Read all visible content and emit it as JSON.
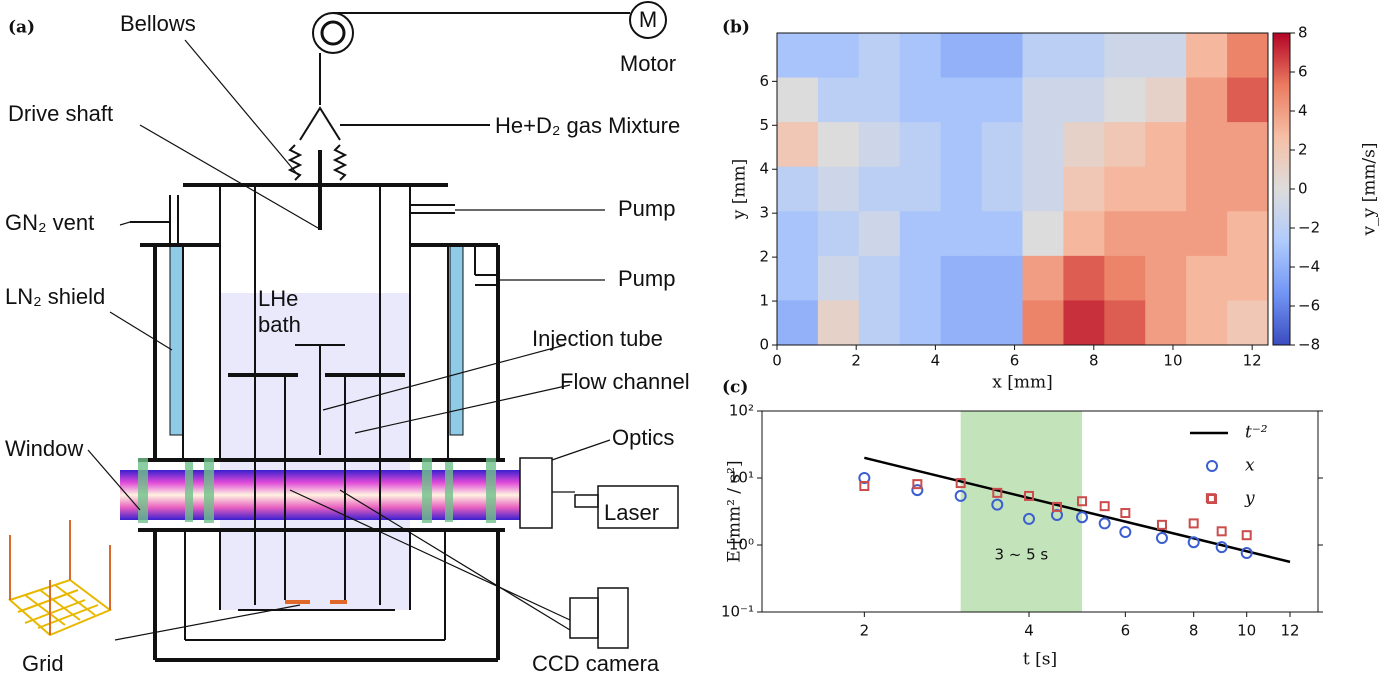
{
  "panel_labels": [
    "(a)",
    "(b)",
    "(c)"
  ],
  "diagram": {
    "labels": [
      "Bellows",
      "M",
      "Motor",
      "Drive shaft",
      "He+D₂ gas Mixture",
      "Pump",
      "Pump",
      "GN₂ vent",
      "LN₂ shield",
      "LHe",
      "bath",
      "Injection tube",
      "Flow channel",
      "Optics",
      "Window",
      "Laser",
      "Grid",
      "CCD camera"
    ]
  },
  "chart_data": [
    {
      "type": "heatmap",
      "xlabel": "x [mm]",
      "ylabel": "y [mm]",
      "colorbar_label": "v_y [mm/s]",
      "xlim": [
        0,
        12.4
      ],
      "ylim": [
        0,
        7.1
      ],
      "xticks": [
        0,
        2,
        4,
        6,
        8,
        10,
        12
      ],
      "yticks": [
        0,
        1,
        2,
        3,
        4,
        5,
        6
      ],
      "clim": [
        -8,
        8
      ],
      "cticks": [
        {
          "value": -8,
          "label": "−8"
        },
        {
          "value": -6,
          "label": "−6"
        },
        {
          "value": -4,
          "label": "−4"
        },
        {
          "value": -2,
          "label": "−2"
        },
        0,
        2,
        4,
        6,
        8
      ],
      "colors": [
        "#3b4cc0",
        "#7396f5",
        "#b0cbfc",
        "#dddcdc",
        "#f6bfa6",
        "#ea7b60",
        "#b40426"
      ],
      "values": [
        [
          -3,
          -3,
          -2,
          -3,
          -4,
          -4,
          -2,
          -2,
          -1,
          -1,
          3,
          5
        ],
        [
          0,
          -2,
          -2,
          -3,
          -3,
          -3,
          -1,
          -1,
          0,
          1,
          4,
          6
        ],
        [
          2,
          0,
          -1,
          -2,
          -3,
          -2,
          -1,
          1,
          2,
          3,
          4,
          4
        ],
        [
          -2,
          -1,
          -2,
          -2,
          -3,
          -2,
          -1,
          2,
          3,
          3,
          4,
          4
        ],
        [
          -3,
          -2,
          -1,
          -3,
          -3,
          -3,
          0,
          3,
          4,
          4,
          4,
          3
        ],
        [
          -3,
          -1,
          -2,
          -3,
          -4,
          -4,
          4,
          6,
          5,
          4,
          3,
          3
        ],
        [
          -4,
          1,
          -2,
          -3,
          -4,
          -4,
          5,
          7,
          6,
          4,
          3,
          2
        ]
      ]
    },
    {
      "type": "scatter",
      "xlabel": "t [s]",
      "ylabel": "E [mm² / s²]",
      "xscale": "log",
      "yscale": "log",
      "xlim": [
        1.3,
        13.5
      ],
      "ylim": [
        0.1,
        100
      ],
      "xticks": [
        2,
        4,
        6,
        8,
        10,
        12
      ],
      "yticks": [
        {
          "value": 0.1,
          "label": "10⁻¹"
        },
        {
          "value": 1,
          "label": "10⁰"
        },
        {
          "value": 10,
          "label": "10¹"
        },
        {
          "value": 100,
          "label": "10²"
        }
      ],
      "span": {
        "x": [
          3,
          5
        ],
        "label": "3 ~ 5 s",
        "color": "#c3e3bb"
      },
      "series": [
        {
          "name": "t⁻²",
          "kind": "line",
          "color": "#000000",
          "x": [
            2,
            12
          ],
          "values": [
            20,
            0.56
          ]
        },
        {
          "name": "x",
          "kind": "circle",
          "color": "#3c5fd0",
          "x": [
            2,
            2.5,
            3,
            3.5,
            4,
            4.5,
            5,
            5.5,
            6,
            7,
            8,
            9,
            10
          ],
          "values": [
            10,
            6.6,
            5.4,
            4.0,
            2.45,
            2.8,
            2.6,
            2.1,
            1.56,
            1.27,
            1.1,
            0.93,
            0.76
          ]
        },
        {
          "name": "y",
          "kind": "square",
          "color": "#cc4b4b",
          "x": [
            2,
            2.5,
            3,
            3.5,
            4,
            4.5,
            5,
            5.5,
            6,
            7,
            8,
            8.6,
            9,
            10
          ],
          "values": [
            7.6,
            8.1,
            8.4,
            6.0,
            5.4,
            3.7,
            4.5,
            3.8,
            3.0,
            2.0,
            2.1,
            5.0,
            1.6,
            1.4
          ]
        }
      ]
    }
  ]
}
